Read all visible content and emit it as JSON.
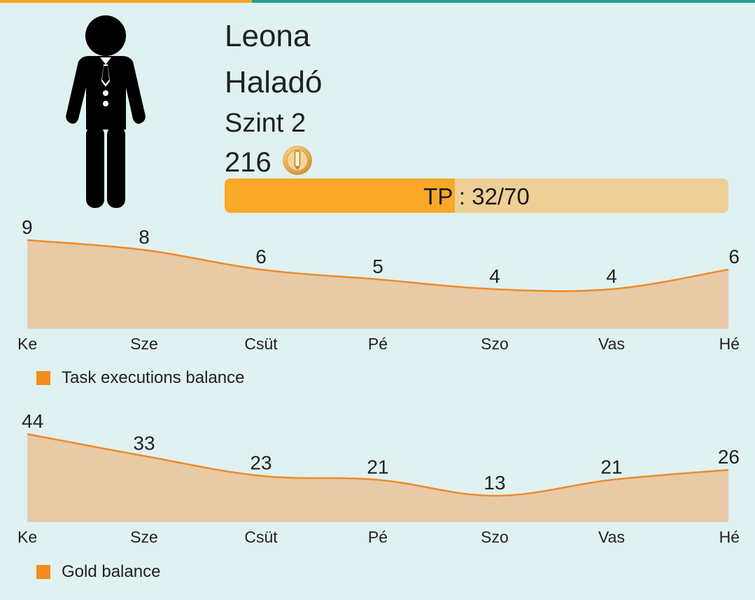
{
  "profile": {
    "name": "Leona",
    "rank": "Haladó",
    "level": "Szint 2",
    "gold": "216",
    "avatar_icon": "person-suit-icon",
    "coin_icon": "gold-coin-icon"
  },
  "tp": {
    "text": "TP : 32/70",
    "current": 32,
    "max": 70
  },
  "colors": {
    "tab_accent": "#f5a623",
    "tab_bar": "#1f9e90",
    "tp_fill": "#f9a828",
    "tp_track": "#eecf95",
    "line": "#ed8a2a",
    "area": "#e8caa6"
  },
  "chart_data": [
    {
      "type": "area",
      "categories": [
        "Ke",
        "Sze",
        "Csüt",
        "Pé",
        "Szo",
        "Vas",
        "Hé"
      ],
      "series": [
        {
          "name": "Task executions balance",
          "values": [
            9,
            8,
            6,
            5,
            4,
            4,
            6
          ]
        }
      ],
      "ylim": [
        0,
        9
      ],
      "grid": false,
      "legend": "bottom-left"
    },
    {
      "type": "area",
      "categories": [
        "Ke",
        "Sze",
        "Csüt",
        "Pé",
        "Szo",
        "Vas",
        "Hé"
      ],
      "series": [
        {
          "name": "Gold balance",
          "values": [
            44,
            33,
            23,
            21,
            13,
            21,
            26
          ]
        }
      ],
      "ylim": [
        0,
        44
      ],
      "grid": false,
      "legend": "bottom-left"
    }
  ]
}
